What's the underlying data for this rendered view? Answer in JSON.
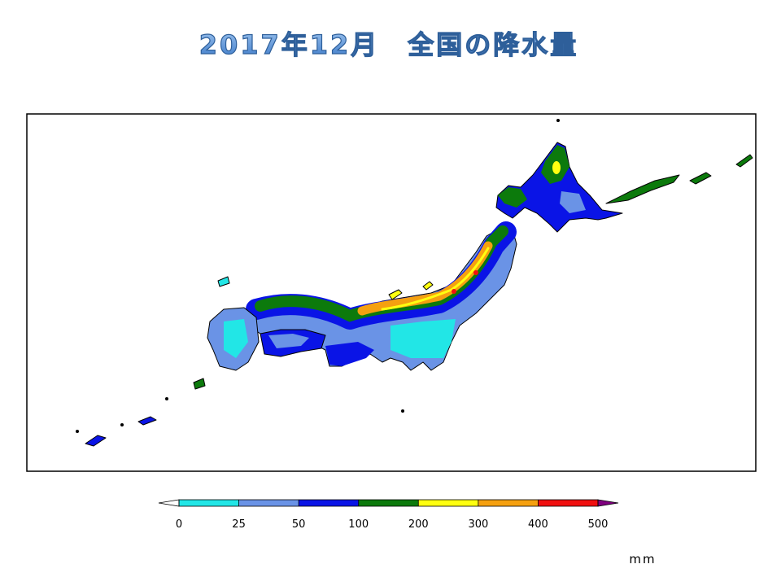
{
  "title": "2017年12月　全国の降水量",
  "legend": {
    "ticks": [
      0,
      25,
      50,
      100,
      200,
      300,
      400,
      500
    ],
    "colors": [
      "#ffffff",
      "#22e6e6",
      "#6a93e6",
      "#0a14e6",
      "#0c7a0c",
      "#ffff10",
      "#f5a010",
      "#f01010",
      "#800080"
    ],
    "unit": "mm"
  }
}
